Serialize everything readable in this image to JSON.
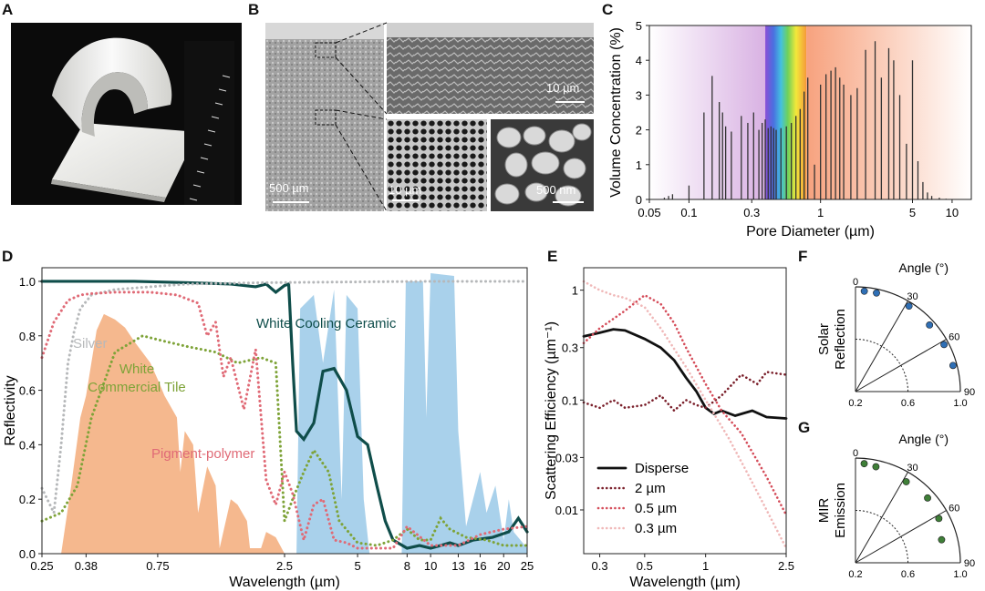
{
  "panels": {
    "a": {
      "letter": "A"
    },
    "b": {
      "letter": "B",
      "scalebars": [
        "500 µm",
        "10 µm",
        "10 µm",
        "500 nm"
      ]
    },
    "c": {
      "letter": "C"
    },
    "d": {
      "letter": "D"
    },
    "e": {
      "letter": "E"
    },
    "f": {
      "letter": "F"
    },
    "g": {
      "letter": "G"
    }
  },
  "chart_data": [
    {
      "id": "C",
      "type": "bar",
      "xlabel": "Pore Diameter (µm)",
      "ylabel": "Volume Concentration (%)",
      "xscale": "log",
      "xlim": [
        0.05,
        14
      ],
      "ylim": [
        0,
        5
      ],
      "xticks": [
        "0.05",
        "0.1",
        "0.3",
        "1",
        "5",
        "10"
      ],
      "yticks": [
        "0",
        "1",
        "2",
        "3",
        "4",
        "5"
      ],
      "spectrum_bands": [
        "violet",
        "rainbow",
        "orange"
      ],
      "x": [
        0.065,
        0.07,
        0.075,
        0.1,
        0.13,
        0.15,
        0.17,
        0.18,
        0.19,
        0.21,
        0.25,
        0.28,
        0.31,
        0.34,
        0.36,
        0.38,
        0.4,
        0.42,
        0.44,
        0.46,
        0.5,
        0.55,
        0.6,
        0.65,
        0.7,
        0.75,
        0.8,
        0.9,
        1.0,
        1.1,
        1.2,
        1.3,
        1.4,
        1.5,
        1.7,
        1.9,
        2.2,
        2.6,
        2.9,
        3.3,
        3.6,
        4.0,
        4.5,
        5.0,
        5.5,
        6.0,
        6.5,
        7.0,
        8.0,
        9.0
      ],
      "values": [
        0.05,
        0.1,
        0.15,
        0.4,
        2.5,
        3.55,
        2.8,
        2.5,
        2.1,
        1.95,
        2.4,
        2.2,
        2.5,
        2.0,
        2.2,
        2.3,
        2.05,
        2.1,
        2.05,
        2.0,
        2.05,
        2.1,
        2.2,
        2.4,
        2.6,
        3.1,
        3.5,
        1.0,
        3.3,
        3.6,
        3.7,
        3.8,
        3.5,
        3.3,
        3.0,
        3.2,
        4.3,
        4.55,
        3.5,
        4.35,
        4.0,
        3.0,
        1.6,
        4.0,
        1.1,
        0.5,
        0.2,
        0.1,
        0.05,
        0.02
      ]
    },
    {
      "id": "D",
      "type": "line",
      "xlabel": "Wavelength (µm)",
      "ylabel": "Reflectivity",
      "xscale": "log",
      "xlim": [
        0.25,
        25
      ],
      "ylim": [
        0,
        1.05
      ],
      "xticks": [
        "0.25",
        "0.38",
        "0.75",
        "2.5",
        "5",
        "8",
        "10",
        "13",
        "16",
        "20",
        "25"
      ],
      "yticks": [
        "0.0",
        "0.2",
        "0.4",
        "0.6",
        "0.8",
        "1.0"
      ],
      "series": [
        {
          "name": "White Cooling Ceramic",
          "color": "#0f4d4a",
          "style": "solid",
          "x": [
            0.25,
            0.3,
            0.4,
            0.6,
            1.0,
            1.5,
            1.9,
            2.1,
            2.3,
            2.5,
            2.6,
            2.7,
            2.8,
            3.0,
            3.3,
            3.6,
            4.0,
            4.5,
            5.0,
            5.5,
            6.0,
            6.5,
            7.0,
            8.0,
            9.0,
            10.0,
            11.0,
            12.0,
            13.0,
            15.0,
            18.0,
            21.0,
            23.0,
            25.0
          ],
          "y": [
            1.0,
            1.0,
            1.0,
            1.0,
            0.995,
            0.99,
            0.98,
            0.99,
            0.96,
            0.985,
            0.99,
            0.7,
            0.45,
            0.42,
            0.48,
            0.67,
            0.68,
            0.6,
            0.43,
            0.4,
            0.25,
            0.12,
            0.05,
            0.02,
            0.03,
            0.02,
            0.03,
            0.04,
            0.03,
            0.05,
            0.06,
            0.08,
            0.13,
            0.08
          ]
        },
        {
          "name": "Silver",
          "color": "#b6b8ba",
          "style": "dotted",
          "x": [
            0.25,
            0.28,
            0.3,
            0.32,
            0.34,
            0.36,
            0.4,
            0.5,
            0.7,
            1.0,
            2.0,
            5.0,
            10.0,
            25.0
          ],
          "y": [
            0.24,
            0.15,
            0.4,
            0.7,
            0.82,
            0.9,
            0.95,
            0.97,
            0.98,
            0.99,
            0.995,
            0.998,
            1.0,
            1.0
          ]
        },
        {
          "name": "White Commercial Tile",
          "color": "#7ea338",
          "style": "dotted",
          "x": [
            0.25,
            0.3,
            0.35,
            0.4,
            0.5,
            0.65,
            0.8,
            1.0,
            1.3,
            1.6,
            2.0,
            2.3,
            2.5,
            2.7,
            3.0,
            3.3,
            3.8,
            4.2,
            5.0,
            6.0,
            7.0,
            8.0,
            9.0,
            10.0,
            11.0,
            12.0,
            14.0,
            17.0,
            20.0,
            25.0
          ],
          "y": [
            0.12,
            0.15,
            0.25,
            0.5,
            0.74,
            0.8,
            0.78,
            0.76,
            0.74,
            0.7,
            0.72,
            0.7,
            0.12,
            0.2,
            0.3,
            0.38,
            0.3,
            0.12,
            0.04,
            0.03,
            0.05,
            0.09,
            0.05,
            0.05,
            0.13,
            0.09,
            0.06,
            0.05,
            0.03,
            0.03
          ]
        },
        {
          "name": "Pigment-polymer",
          "color": "#e06a76",
          "style": "dotted",
          "x": [
            0.25,
            0.28,
            0.32,
            0.36,
            0.4,
            0.5,
            0.7,
            0.9,
            1.1,
            1.2,
            1.3,
            1.4,
            1.5,
            1.7,
            1.9,
            2.1,
            2.3,
            2.5,
            2.7,
            3.0,
            3.3,
            3.6,
            4.0,
            4.5,
            5.0,
            6.0,
            7.0,
            8.0,
            10.0,
            13.0,
            16.0,
            20.0,
            25.0
          ],
          "y": [
            0.72,
            0.85,
            0.93,
            0.95,
            0.955,
            0.96,
            0.96,
            0.95,
            0.92,
            0.8,
            0.85,
            0.65,
            0.72,
            0.53,
            0.75,
            0.27,
            0.18,
            0.3,
            0.22,
            0.05,
            0.18,
            0.2,
            0.05,
            0.04,
            0.02,
            0.02,
            0.02,
            0.1,
            0.03,
            0.03,
            0.07,
            0.09,
            0.1
          ]
        }
      ],
      "shaded": [
        {
          "name": "solar",
          "color": "#f4b082"
        },
        {
          "name": "atmospheric",
          "color": "#7bb8e0"
        }
      ]
    },
    {
      "id": "E",
      "type": "line",
      "xlabel": "Wavelength (µm)",
      "ylabel": "Scattering Efficiency (µm⁻¹)",
      "xscale": "log",
      "yscale": "log",
      "xlim": [
        0.25,
        2.5
      ],
      "ylim": [
        0.004,
        1.6
      ],
      "xticks": [
        "0.3",
        "0.5",
        "1",
        "2.5"
      ],
      "yticks": [
        "0.01",
        "0.03",
        "0.1",
        "0.3",
        "1"
      ],
      "legend": "bottom-left",
      "series": [
        {
          "name": "Disperse",
          "color": "#111111",
          "style": "solid",
          "x": [
            0.25,
            0.3,
            0.35,
            0.4,
            0.5,
            0.6,
            0.7,
            0.8,
            0.9,
            1.0,
            1.1,
            1.2,
            1.4,
            1.7,
            2.0,
            2.5
          ],
          "y": [
            0.38,
            0.41,
            0.44,
            0.43,
            0.36,
            0.3,
            0.23,
            0.16,
            0.12,
            0.085,
            0.075,
            0.08,
            0.072,
            0.08,
            0.07,
            0.068
          ]
        },
        {
          "name": "2 µm",
          "color": "#7a1f2a",
          "style": "dotted",
          "x": [
            0.25,
            0.3,
            0.35,
            0.4,
            0.5,
            0.6,
            0.7,
            0.8,
            0.9,
            1.0,
            1.2,
            1.5,
            1.8,
            2.0,
            2.5
          ],
          "y": [
            0.095,
            0.085,
            0.1,
            0.085,
            0.09,
            0.11,
            0.08,
            0.1,
            0.09,
            0.085,
            0.11,
            0.17,
            0.14,
            0.18,
            0.17
          ]
        },
        {
          "name": "0.5 µm",
          "color": "#d54d5a",
          "style": "dotted",
          "x": [
            0.25,
            0.3,
            0.4,
            0.5,
            0.6,
            0.7,
            0.8,
            1.0,
            1.2,
            1.5,
            2.0,
            2.5
          ],
          "y": [
            0.33,
            0.45,
            0.65,
            0.9,
            0.75,
            0.5,
            0.3,
            0.14,
            0.08,
            0.05,
            0.02,
            0.009
          ]
        },
        {
          "name": "0.3 µm",
          "color": "#f0b8b8",
          "style": "dotted",
          "x": [
            0.25,
            0.3,
            0.35,
            0.4,
            0.5,
            0.6,
            0.8,
            1.0,
            1.3,
            1.6,
            2.0,
            2.5
          ],
          "y": [
            1.2,
            1.0,
            0.9,
            0.85,
            0.7,
            0.45,
            0.2,
            0.1,
            0.045,
            0.022,
            0.01,
            0.0045
          ]
        }
      ]
    },
    {
      "id": "F",
      "type": "scatter",
      "subtype": "polar-quadrant",
      "ylabel": "Solar Reflection",
      "angle_label": "Angle (°)",
      "angle_ticks": [
        "0",
        "30",
        "60",
        "90"
      ],
      "radial_ticks": [
        "0.2",
        "0.6",
        "1.0"
      ],
      "point_color": "#2f6fb5",
      "angles": [
        5,
        12,
        32,
        48,
        62,
        75
      ],
      "r": [
        0.97,
        0.97,
        0.97,
        0.96,
        0.965,
        0.97
      ]
    },
    {
      "id": "G",
      "type": "scatter",
      "subtype": "polar-quadrant",
      "ylabel": "MIR Emission",
      "angle_label": "Angle (°)",
      "angle_ticks": [
        "0",
        "30",
        "60",
        "90"
      ],
      "radial_ticks": [
        "0.2",
        "0.6",
        "1.0"
      ],
      "point_color": "#3f7f38",
      "angles": [
        5,
        12,
        32,
        48,
        62,
        75
      ],
      "r": [
        0.96,
        0.95,
        0.93,
        0.94,
        0.92,
        0.88
      ]
    }
  ]
}
